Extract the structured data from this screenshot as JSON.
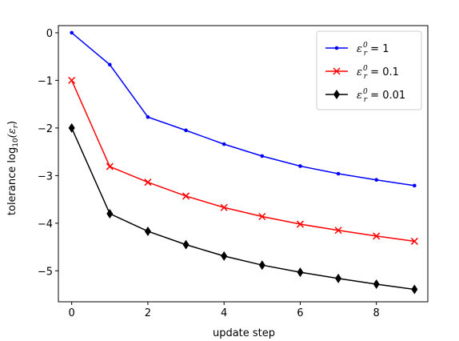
{
  "chart_data": {
    "type": "line",
    "xlabel": "update step",
    "ylabel_prefix": "tolerance log",
    "ylabel_sub": "10",
    "ylabel_suffix": "(ε",
    "ylabel_suffix_sub": "r",
    "ylabel_close": ")",
    "xlim": [
      -0.35,
      9.35
    ],
    "ylim": [
      -5.65,
      0.15
    ],
    "xticks": [
      0,
      2,
      4,
      6,
      8
    ],
    "xtick_labels": [
      "0",
      "2",
      "4",
      "6",
      "8"
    ],
    "yticks": [
      0,
      -1,
      -2,
      -3,
      -4,
      -5
    ],
    "ytick_labels": [
      "0",
      "−1",
      "−2",
      "−3",
      "−4",
      "−5"
    ],
    "grid": false,
    "legend_position": "top-right",
    "x": [
      0,
      1,
      2,
      3,
      4,
      5,
      6,
      7,
      8,
      9
    ],
    "series": [
      {
        "name": "ε_r^0 = 1",
        "legend_value": "1",
        "color": "#0000ff",
        "marker": "dot",
        "values": [
          0,
          -0.67,
          -1.77,
          -2.05,
          -2.34,
          -2.59,
          -2.8,
          -2.96,
          -3.09,
          -3.21
        ]
      },
      {
        "name": "ε_r^0 = 0.1",
        "legend_value": "0.1",
        "color": "#ff0000",
        "marker": "x",
        "values": [
          -1.0,
          -2.81,
          -3.14,
          -3.43,
          -3.67,
          -3.86,
          -4.02,
          -4.15,
          -4.27,
          -4.38
        ]
      },
      {
        "name": "ε_r^0 = 0.01",
        "legend_value": "0.01",
        "color": "#000000",
        "marker": "diamond",
        "values": [
          -2.0,
          -3.8,
          -4.17,
          -4.45,
          -4.69,
          -4.88,
          -5.03,
          -5.16,
          -5.28,
          -5.39
        ]
      }
    ]
  }
}
